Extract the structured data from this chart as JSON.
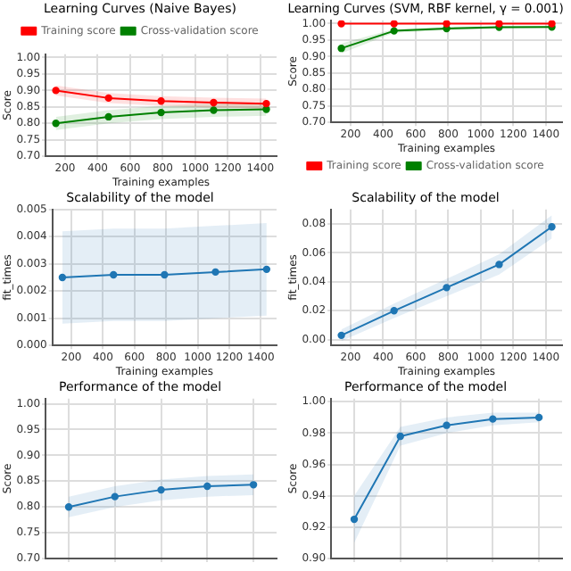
{
  "chart_data": [
    {
      "type": "line",
      "title": "Learning Curves (Naive Bayes)",
      "xlabel": "Training examples",
      "ylabel": "Score",
      "x": [
        143,
        467,
        790,
        1113,
        1437
      ],
      "xlim": [
        80,
        1500
      ],
      "xticks": [
        200,
        400,
        600,
        800,
        1000,
        1200,
        1400
      ],
      "ylim": [
        0.7,
        1.01
      ],
      "yticks": [
        {
          "value": 0.7,
          "label": "0.70"
        },
        {
          "value": 0.75,
          "label": "0.75"
        },
        {
          "value": 0.8,
          "label": "0.80"
        },
        {
          "value": 0.85,
          "label": "0.85"
        },
        {
          "value": 0.9,
          "label": "0.90"
        },
        {
          "value": 0.95,
          "label": "0.95"
        },
        {
          "value": 1.0,
          "label": "1.00"
        }
      ],
      "grid": true,
      "legend": "top",
      "marker": "circle",
      "series": [
        {
          "name": "Training score",
          "color": "#ff0000",
          "values": [
            0.9,
            0.877,
            0.868,
            0.863,
            0.86
          ],
          "lower": [
            0.885,
            0.862,
            0.853,
            0.848,
            0.845
          ],
          "upper": [
            0.915,
            0.892,
            0.883,
            0.878,
            0.875
          ]
        },
        {
          "name": "Cross-validation score",
          "color": "#008000",
          "values": [
            0.8,
            0.82,
            0.833,
            0.84,
            0.843
          ],
          "lower": [
            0.78,
            0.8,
            0.813,
            0.82,
            0.823
          ],
          "upper": [
            0.82,
            0.84,
            0.853,
            0.86,
            0.863
          ]
        }
      ]
    },
    {
      "type": "line",
      "title": "Learning Curves (SVM, RBF kernel, γ = 0.001)",
      "xlabel": "Training examples",
      "ylabel": "Score",
      "x": [
        143,
        467,
        790,
        1113,
        1437
      ],
      "xlim": [
        80,
        1500
      ],
      "xticks": [
        200,
        400,
        600,
        800,
        1000,
        1200,
        1400
      ],
      "ylim": [
        0.7,
        1.01
      ],
      "yticks": [
        {
          "value": 0.7,
          "label": "0.70"
        },
        {
          "value": 0.75,
          "label": "0.75"
        },
        {
          "value": 0.8,
          "label": "0.80"
        },
        {
          "value": 0.85,
          "label": "0.85"
        },
        {
          "value": 0.9,
          "label": "0.90"
        },
        {
          "value": 0.95,
          "label": "0.95"
        },
        {
          "value": 1.0,
          "label": "1.00"
        }
      ],
      "grid": true,
      "legend": "bottom",
      "marker": "circle",
      "series": [
        {
          "name": "Training score",
          "color": "#ff0000",
          "values": [
            1,
            1,
            1,
            1,
            1
          ]
        },
        {
          "name": "Cross-validation score",
          "color": "#008000",
          "values": [
            0.925,
            0.978,
            0.985,
            0.989,
            0.99
          ],
          "lower": [
            0.91,
            0.972,
            0.98,
            0.985,
            0.987
          ],
          "upper": [
            0.94,
            0.984,
            0.99,
            0.993,
            0.993
          ]
        }
      ]
    },
    {
      "type": "line",
      "title": "Scalability of the model",
      "xlabel": "Training examples",
      "ylabel": "fit_times",
      "x": [
        143,
        467,
        790,
        1113,
        1437
      ],
      "xlim": [
        80,
        1500
      ],
      "xticks": [
        200,
        400,
        600,
        800,
        1000,
        1200,
        1400
      ],
      "ylim": [
        0,
        0.005
      ],
      "yticks": [
        {
          "value": 0,
          "label": "0.000"
        },
        {
          "value": 0.001,
          "label": "0.001"
        },
        {
          "value": 0.002,
          "label": "0.002"
        },
        {
          "value": 0.003,
          "label": "0.003"
        },
        {
          "value": 0.004,
          "label": "0.004"
        },
        {
          "value": 0.005,
          "label": "0.005"
        }
      ],
      "grid": true,
      "marker": "circle",
      "series": [
        {
          "color": "#1f77b4",
          "values": [
            0.0025,
            0.0026,
            0.0026,
            0.0027,
            0.0028
          ],
          "lower": [
            0.0008,
            0.0009,
            0.0009,
            0.001,
            0.0011
          ],
          "upper": [
            0.0042,
            0.0043,
            0.0043,
            0.0044,
            0.0045
          ]
        }
      ]
    },
    {
      "type": "line",
      "title": "Scalability of the model",
      "xlabel": "Training examples",
      "ylabel": "fit_times",
      "x": [
        143,
        467,
        790,
        1113,
        1437
      ],
      "xlim": [
        80,
        1500
      ],
      "xticks": [
        200,
        400,
        600,
        800,
        1000,
        1200,
        1400
      ],
      "ylim": [
        -0.004,
        0.09
      ],
      "yticks": [
        {
          "value": 0,
          "label": "0.00"
        },
        {
          "value": 0.02,
          "label": "0.02"
        },
        {
          "value": 0.04,
          "label": "0.04"
        },
        {
          "value": 0.06,
          "label": "0.06"
        },
        {
          "value": 0.08,
          "label": "0.08"
        }
      ],
      "grid": true,
      "marker": "circle",
      "series": [
        {
          "color": "#1f77b4",
          "values": [
            0.003,
            0.02,
            0.036,
            0.052,
            0.078
          ],
          "lower": [
            -0.001,
            0.015,
            0.03,
            0.045,
            0.07
          ],
          "upper": [
            0.007,
            0.025,
            0.042,
            0.059,
            0.086
          ]
        }
      ]
    },
    {
      "type": "line",
      "title": "Performance of the model",
      "ylabel": "Score",
      "categories": [
        null,
        null,
        null,
        null,
        null
      ],
      "ylim": [
        0.7,
        1.01
      ],
      "yticks": [
        {
          "value": 0.7,
          "label": "0.70"
        },
        {
          "value": 0.75,
          "label": "0.75"
        },
        {
          "value": 0.8,
          "label": "0.80"
        },
        {
          "value": 0.85,
          "label": "0.85"
        },
        {
          "value": 0.9,
          "label": "0.90"
        },
        {
          "value": 0.95,
          "label": "0.95"
        },
        {
          "value": 1.0,
          "label": "1.00"
        }
      ],
      "grid": true,
      "marker": "circle",
      "tick_labels": "y",
      "series": [
        {
          "color": "#1f77b4",
          "values": [
            0.8,
            0.82,
            0.833,
            0.84,
            0.843
          ],
          "lower": [
            0.78,
            0.8,
            0.813,
            0.82,
            0.823
          ],
          "upper": [
            0.82,
            0.84,
            0.853,
            0.86,
            0.863
          ]
        }
      ]
    },
    {
      "type": "line",
      "title": "Performance of the model",
      "ylabel": "Score",
      "categories": [
        null,
        null,
        null,
        null,
        null
      ],
      "ylim": [
        0.9,
        1.002
      ],
      "yticks": [
        {
          "value": 0.9,
          "label": "0.90"
        },
        {
          "value": 0.92,
          "label": "0.92"
        },
        {
          "value": 0.94,
          "label": "0.94"
        },
        {
          "value": 0.96,
          "label": "0.96"
        },
        {
          "value": 0.98,
          "label": "0.98"
        },
        {
          "value": 1.0,
          "label": "1.00"
        }
      ],
      "grid": true,
      "marker": "circle",
      "tick_labels": "y",
      "series": [
        {
          "color": "#1f77b4",
          "values": [
            0.925,
            0.978,
            0.985,
            0.989,
            0.99
          ],
          "lower": [
            0.91,
            0.972,
            0.98,
            0.985,
            0.987
          ],
          "upper": [
            0.94,
            0.984,
            0.99,
            0.993,
            0.993
          ]
        }
      ]
    }
  ]
}
